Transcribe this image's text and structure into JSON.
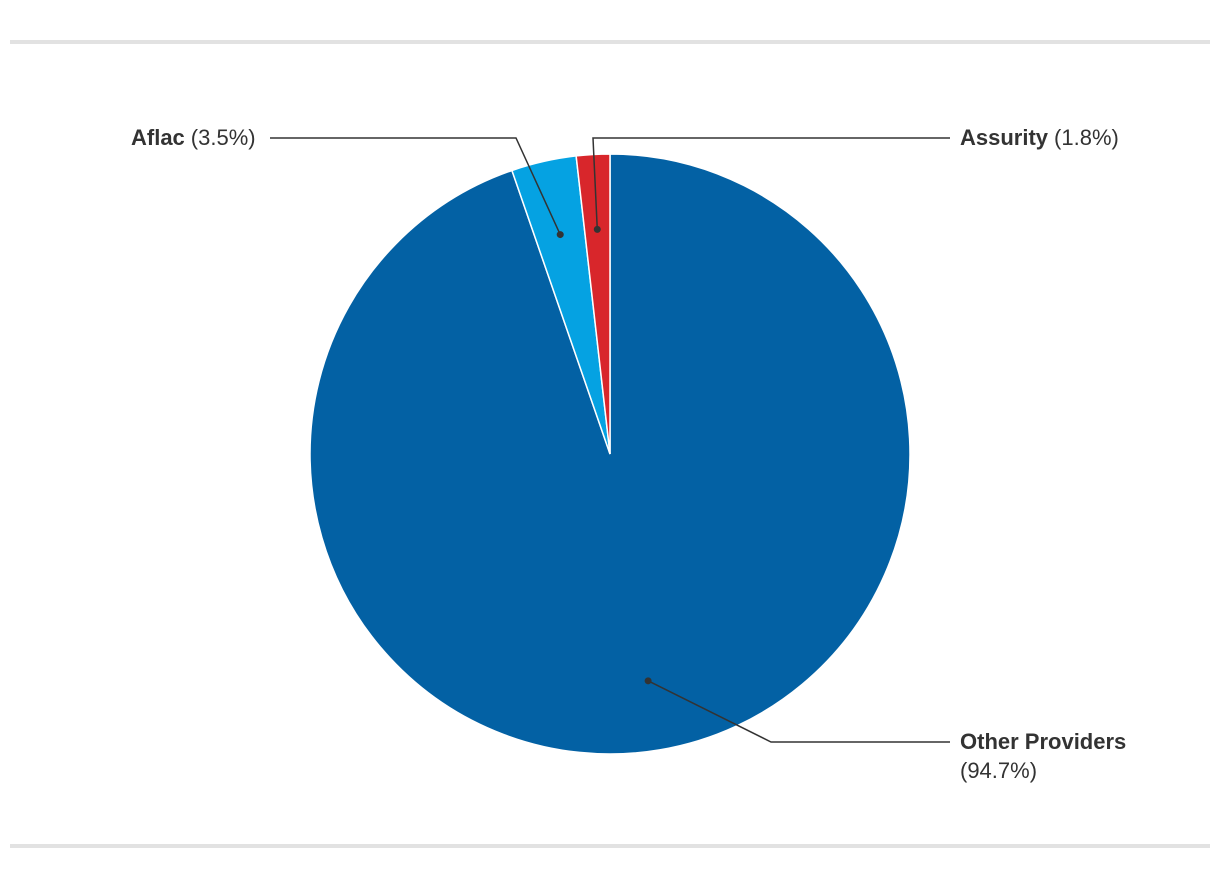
{
  "chart_data": {
    "type": "pie",
    "title": "",
    "slices": [
      {
        "label": "Other Providers",
        "value": 94.7,
        "percent_label": "(94.7%)",
        "color": "#0361a4"
      },
      {
        "label": "Aflac",
        "value": 3.5,
        "percent_label": "(3.5%)",
        "color": "#05a2e2"
      },
      {
        "label": "Assurity",
        "value": 1.8,
        "percent_label": "(1.8%)",
        "color": "#d8262b"
      }
    ],
    "start": "12 o'clock",
    "direction": "clockwise",
    "label_style": "leader lines with dot markers",
    "legend": "none"
  }
}
